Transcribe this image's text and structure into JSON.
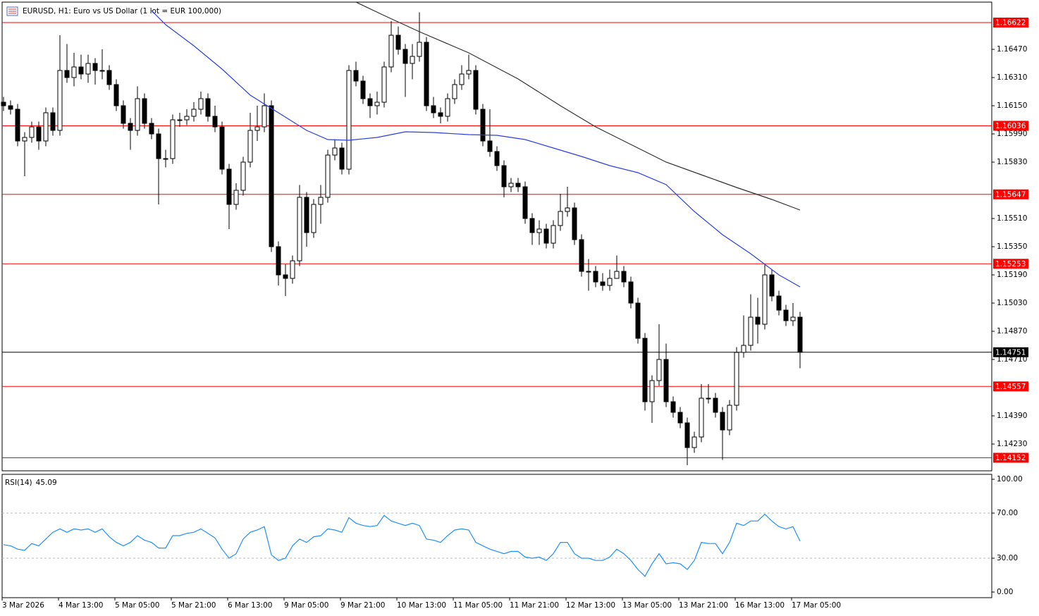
{
  "chart_data": [
    {
      "type": "candlestick",
      "title": "EURUSD, H1:  Euro vs US Dollar (1 lot = EUR 100,000)",
      "categories": [
        "3 Mar 2026",
        null,
        null,
        null,
        null,
        null,
        null,
        null,
        "4 Mar 13:00",
        null,
        null,
        null,
        null,
        null,
        null,
        null,
        "5 Mar 05:00",
        null,
        null,
        null,
        null,
        null,
        null,
        null,
        "5 Mar 21:00",
        null,
        null,
        null,
        null,
        null,
        null,
        null,
        "6 Mar 13:00",
        null,
        null,
        null,
        null,
        null,
        null,
        null,
        "9 Mar 05:00",
        null,
        null,
        null,
        null,
        null,
        null,
        null,
        "9 Mar 21:00",
        null,
        null,
        null,
        null,
        null,
        null,
        null,
        "10 Mar 13:00",
        null,
        null,
        null,
        null,
        null,
        null,
        null,
        "11 Mar 05:00",
        null,
        null,
        null,
        null,
        null,
        null,
        null,
        "11 Mar 21:00",
        null,
        null,
        null,
        null,
        null,
        null,
        null,
        "12 Mar 13:00",
        null,
        null,
        null,
        null,
        null,
        null,
        null,
        "13 Mar 05:00",
        null,
        null,
        null,
        null,
        null,
        null,
        null,
        "13 Mar 21:00",
        null,
        null,
        null,
        null,
        null,
        null,
        null,
        "16 Mar 13:00",
        null,
        null,
        null,
        null,
        null,
        null,
        null,
        "17 Mar 05:00",
        null
      ],
      "ohlc": {
        "open": [
          1.1617,
          1.1615,
          1.1613,
          1.1595,
          1.1597,
          1.1603,
          1.1595,
          1.1611,
          1.1601,
          1.1635,
          1.1631,
          1.1637,
          1.1633,
          1.1639,
          1.1635,
          1.1635,
          1.1627,
          1.1615,
          1.1605,
          1.1601,
          1.1619,
          1.1605,
          1.1599,
          1.1585,
          1.1585,
          1.1607,
          1.1607,
          1.1609,
          1.1613,
          1.1619,
          1.1609,
          1.1603,
          1.1579,
          1.1559,
          1.1567,
          1.1583,
          1.1601,
          1.1603,
          1.1615,
          1.1535,
          1.1519,
          1.1517,
          1.1527,
          1.1563,
          1.1543,
          1.1559,
          1.1563,
          1.1587,
          1.1591,
          1.1579,
          1.1635,
          1.1629,
          1.1619,
          1.1615,
          1.1617,
          1.1637,
          1.1655,
          1.1647,
          1.1639,
          1.1643,
          1.1651,
          1.1615,
          1.1611,
          1.1609,
          1.1619,
          1.1627,
          1.1633,
          1.1635,
          1.1613,
          1.1595,
          1.1589,
          1.1581,
          1.1569,
          1.1571,
          1.1569,
          1.1551,
          1.1543,
          1.1545,
          1.1537,
          1.1547,
          1.1555,
          1.1557,
          1.1539,
          1.1521,
          1.1521,
          1.1515,
          1.1513,
          1.1517,
          1.1521,
          1.1515,
          1.1503,
          1.1483,
          1.1447,
          1.1459,
          1.1471,
          1.1447,
          1.1441,
          1.1435,
          1.1421,
          1.1427,
          1.1449,
          1.1449,
          1.1441,
          1.1431,
          1.1445,
          1.1475,
          1.1479,
          1.1495,
          1.1491,
          1.1519,
          1.1507,
          1.1499,
          1.1493,
          1.1495
        ],
        "high": [
          1.162,
          1.1618,
          1.1616,
          1.16,
          1.1606,
          1.1606,
          1.1614,
          1.1614,
          1.1655,
          1.165,
          1.1645,
          1.1644,
          1.1644,
          1.1642,
          1.1647,
          1.1638,
          1.163,
          1.1618,
          1.1608,
          1.1626,
          1.1622,
          1.1608,
          1.1602,
          1.159,
          1.161,
          1.1611,
          1.1613,
          1.1617,
          1.1623,
          1.1622,
          1.1615,
          1.1606,
          1.1582,
          1.1571,
          1.1586,
          1.1611,
          1.1615,
          1.1622,
          1.1618,
          1.1538,
          1.1525,
          1.153,
          1.157,
          1.1566,
          1.1562,
          1.157,
          1.159,
          1.1596,
          1.1594,
          1.1638,
          1.164,
          1.1632,
          1.1622,
          1.1623,
          1.164,
          1.1663,
          1.166,
          1.165,
          1.165,
          1.1668,
          1.1654,
          1.162,
          1.1614,
          1.1622,
          1.163,
          1.1638,
          1.1644,
          1.1638,
          1.1616,
          1.1613,
          1.1592,
          1.1584,
          1.1574,
          1.1574,
          1.1572,
          1.1554,
          1.155,
          1.1548,
          1.155,
          1.1565,
          1.1569,
          1.156,
          1.1542,
          1.1528,
          1.1524,
          1.152,
          1.1522,
          1.153,
          1.1524,
          1.1518,
          1.1506,
          1.1486,
          1.1462,
          1.1491,
          1.148,
          1.145,
          1.1444,
          1.1438,
          1.143,
          1.1457,
          1.1457,
          1.1452,
          1.1444,
          1.1448,
          1.1478,
          1.1496,
          1.1508,
          1.1506,
          1.1525,
          1.1522,
          1.151,
          1.1502,
          1.1503,
          1.1498
        ],
        "low": [
          1.1612,
          1.161,
          1.1592,
          1.1575,
          1.1594,
          1.159,
          1.1592,
          1.1598,
          1.1598,
          1.1628,
          1.1626,
          1.163,
          1.1628,
          1.1627,
          1.163,
          1.1624,
          1.1612,
          1.1602,
          1.159,
          1.1598,
          1.1602,
          1.1596,
          1.1559,
          1.158,
          1.1582,
          1.1603,
          1.1604,
          1.1606,
          1.161,
          1.1606,
          1.16,
          1.1576,
          1.1545,
          1.1556,
          1.1564,
          1.158,
          1.1595,
          1.16,
          1.1532,
          1.1513,
          1.1507,
          1.1514,
          1.1524,
          1.1535,
          1.154,
          1.1548,
          1.156,
          1.1584,
          1.1576,
          1.1576,
          1.1626,
          1.1616,
          1.1608,
          1.161,
          1.1614,
          1.1634,
          1.1644,
          1.162,
          1.163,
          1.164,
          1.1612,
          1.1608,
          1.1605,
          1.1606,
          1.1616,
          1.1624,
          1.163,
          1.161,
          1.1592,
          1.1586,
          1.1578,
          1.1563,
          1.1566,
          1.1566,
          1.1548,
          1.1536,
          1.1536,
          1.1534,
          1.1534,
          1.1544,
          1.1552,
          1.1536,
          1.1518,
          1.151,
          1.1512,
          1.151,
          1.151,
          1.1518,
          1.1512,
          1.15,
          1.148,
          1.1442,
          1.1435,
          1.1456,
          1.1444,
          1.1438,
          1.1432,
          1.1411,
          1.1418,
          1.1424,
          1.1446,
          1.1438,
          1.1414,
          1.1428,
          1.1442,
          1.1472,
          1.1476,
          1.148,
          1.1488,
          1.1504,
          1.1496,
          1.149,
          1.149,
          1.1466
        ],
        "close": [
          1.1615,
          1.1613,
          1.1595,
          1.1597,
          1.1603,
          1.1595,
          1.1611,
          1.1601,
          1.1635,
          1.1631,
          1.1637,
          1.1633,
          1.1639,
          1.1635,
          1.1635,
          1.1627,
          1.1615,
          1.1605,
          1.1601,
          1.1619,
          1.1605,
          1.1599,
          1.1585,
          1.1585,
          1.1607,
          1.1607,
          1.1609,
          1.1613,
          1.1619,
          1.1609,
          1.1603,
          1.1579,
          1.1559,
          1.1567,
          1.1583,
          1.1601,
          1.1603,
          1.1615,
          1.1535,
          1.1519,
          1.1517,
          1.1527,
          1.1563,
          1.1543,
          1.1559,
          1.1563,
          1.1587,
          1.1591,
          1.1579,
          1.1635,
          1.1629,
          1.1619,
          1.1615,
          1.1617,
          1.1637,
          1.1655,
          1.1647,
          1.1639,
          1.1643,
          1.1651,
          1.1615,
          1.1611,
          1.1609,
          1.1619,
          1.1627,
          1.1633,
          1.1635,
          1.1613,
          1.1595,
          1.1589,
          1.1581,
          1.1569,
          1.1571,
          1.1569,
          1.1551,
          1.1543,
          1.1545,
          1.1537,
          1.1547,
          1.1555,
          1.1557,
          1.1539,
          1.1521,
          1.1521,
          1.1515,
          1.1513,
          1.1517,
          1.1521,
          1.1515,
          1.1503,
          1.1483,
          1.1447,
          1.1459,
          1.1471,
          1.1447,
          1.1441,
          1.1435,
          1.1421,
          1.1427,
          1.1449,
          1.1449,
          1.1441,
          1.1431,
          1.1445,
          1.1475,
          1.1479,
          1.1495,
          1.1491,
          1.1519,
          1.1507,
          1.1499,
          1.1493,
          1.1495,
          1.14751
        ],
        "up_color": "#ffffff",
        "down_color": "#000000",
        "outline_color": "#000000"
      },
      "series": [
        {
          "color": "#2a3fe0",
          "x": [
            21,
            23,
            27,
            31,
            35,
            39,
            43,
            46,
            49,
            53,
            57,
            61,
            66,
            70,
            74,
            78,
            82,
            86,
            90,
            94,
            98,
            102,
            106,
            110,
            113
          ],
          "values": [
            1.1669,
            1.1661,
            1.1649,
            1.16358,
            1.1621,
            1.1611,
            1.1601,
            1.15958,
            1.15954,
            1.1597,
            1.16002,
            1.15998,
            1.15986,
            1.15982,
            1.15958,
            1.1591,
            1.15862,
            1.1581,
            1.1577,
            1.15702,
            1.1555,
            1.15418,
            1.1531,
            1.1519,
            1.15122
          ]
        },
        {
          "color": "#303030",
          "x": [
            50,
            54,
            59,
            66,
            73,
            79,
            84,
            89,
            94,
            99,
            104,
            109,
            113
          ],
          "values": [
            1.16738,
            1.16662,
            1.1657,
            1.1645,
            1.16302,
            1.1615,
            1.1603,
            1.1593,
            1.1583,
            1.15758,
            1.15686,
            1.15618,
            1.15558
          ]
        }
      ],
      "levels": [
        1.16622,
        1.16036,
        1.15647,
        1.15253,
        1.14557,
        1.14152
      ],
      "level_color": "#ff0000",
      "last_price": 1.14751,
      "last_price_color": "#000000",
      "ylim": [
        1.14078,
        1.16738
      ],
      "yticks": [
        {
          "value": 1.1647,
          "label": "1.16470"
        },
        {
          "value": 1.1631,
          "label": "1.16310"
        },
        {
          "value": 1.1615,
          "label": "1.16150"
        },
        {
          "value": 1.1599,
          "label": "1.15990"
        },
        {
          "value": 1.1583,
          "label": "1.15830"
        },
        {
          "value": 1.1551,
          "label": "1.15510"
        },
        {
          "value": 1.1535,
          "label": "1.15350"
        },
        {
          "value": 1.1519,
          "label": "1.15190"
        },
        {
          "value": 1.1503,
          "label": "1.15030"
        },
        {
          "value": 1.1487,
          "label": "1.14870"
        },
        {
          "value": 1.1471,
          "label": "1.14710"
        },
        {
          "value": 1.1439,
          "label": "1.14390"
        },
        {
          "value": 1.1423,
          "label": "1.14230"
        }
      ]
    },
    {
      "type": "line",
      "series": [
        {
          "name": "RSI(14)",
          "color": "#1e90ff",
          "values": [
            42,
            41,
            38,
            37,
            43,
            41,
            47,
            53,
            56,
            53,
            56,
            55,
            56,
            53,
            56,
            49,
            44,
            41,
            44,
            50,
            46,
            44,
            39,
            39,
            50,
            50,
            52,
            53,
            56,
            52,
            48,
            38,
            30,
            34,
            47,
            53,
            55,
            58,
            33,
            28,
            30,
            41,
            47,
            44,
            49,
            50,
            56,
            55,
            53,
            66,
            61,
            59,
            58,
            59,
            68,
            63,
            61,
            59,
            61,
            59,
            47,
            46,
            44,
            50,
            55,
            56,
            55,
            44,
            41,
            38,
            36,
            34,
            36,
            36,
            31,
            30,
            31,
            28,
            34,
            44,
            44,
            34,
            30,
            30,
            28,
            28,
            31,
            38,
            34,
            28,
            20,
            14,
            25,
            34,
            25,
            26,
            25,
            20,
            28,
            44,
            43,
            43,
            34,
            44,
            61,
            59,
            63,
            63,
            69,
            63,
            58,
            56,
            58,
            45.09
          ]
        }
      ],
      "ylim": [
        0,
        100
      ],
      "yticks": [
        {
          "value": 100,
          "label": "100.00"
        },
        {
          "value": 70,
          "label": "70.00"
        },
        {
          "value": 30,
          "label": "30.00"
        },
        {
          "value": 0,
          "label": "0.00"
        }
      ],
      "grid": true
    }
  ]
}
